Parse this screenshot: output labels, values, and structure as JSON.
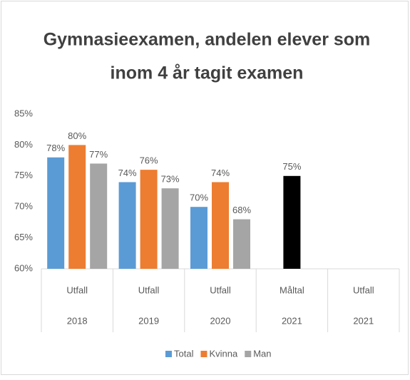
{
  "chart_data": {
    "type": "bar",
    "title": [
      "Gymnasieexamen, andelen elever som",
      "inom 4 år tagit examen"
    ],
    "categories": [
      "Utfall",
      "Utfall",
      "Utfall",
      "Måltal",
      "Utfall"
    ],
    "categories_level2": [
      "2018",
      "2019",
      "2020",
      "2021",
      "2021"
    ],
    "series": [
      {
        "name": "Total",
        "color": "#5b9bd5",
        "colors": [
          "#5b9bd5",
          "#5b9bd5",
          "#5b9bd5",
          "#000000",
          "#5b9bd5"
        ],
        "values": [
          78,
          74,
          70,
          75,
          null
        ],
        "value_labels": [
          "78%",
          "74%",
          "70%",
          "75%",
          null
        ]
      },
      {
        "name": "Kvinna",
        "color": "#ed7d31",
        "values": [
          80,
          76,
          74,
          null,
          null
        ],
        "value_labels": [
          "80%",
          "76%",
          "74%",
          null,
          null
        ]
      },
      {
        "name": "Man",
        "color": "#a5a5a5",
        "values": [
          77,
          73,
          68,
          null,
          null
        ],
        "value_labels": [
          "77%",
          "73%",
          "68%",
          null,
          null
        ]
      }
    ],
    "ylim": [
      60,
      85
    ],
    "yticks": [
      {
        "value": 60,
        "label": "60%"
      },
      {
        "value": 65,
        "label": "65%"
      },
      {
        "value": 70,
        "label": "70%"
      },
      {
        "value": 75,
        "label": "75%"
      },
      {
        "value": 80,
        "label": "80%"
      },
      {
        "value": 85,
        "label": "85%"
      }
    ],
    "grid": false,
    "legend": "bottom"
  }
}
